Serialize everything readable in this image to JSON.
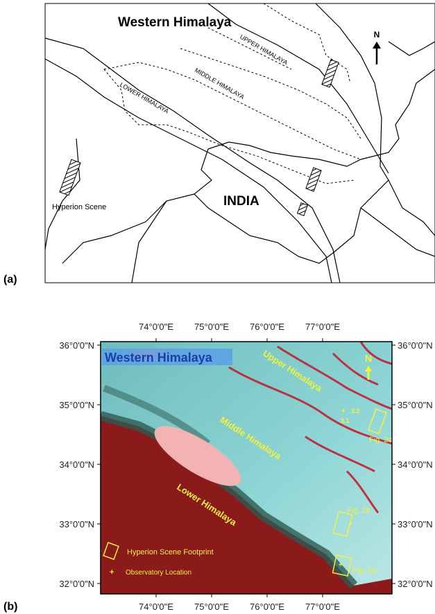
{
  "panel_a": {
    "label": "(a)",
    "title": "Western Himalaya",
    "north": "N",
    "zones": [
      "UPPER HIMALAYA",
      "MIDDLE HIMALAYA",
      "LOWER HIMALAYA"
    ],
    "country": "INDIA",
    "legend": "Hyperion Scene"
  },
  "panel_b": {
    "label": "(b)",
    "title": "Western Himalaya",
    "north": "N",
    "zones": [
      "Upper Himalaya",
      "Middle Himalaya",
      "Lower Himalaya"
    ],
    "lon_labels": [
      "74°0'0\"E",
      "75°0'0\"E",
      "76°0'0\"E",
      "77°0'0\"E"
    ],
    "lat_labels": [
      "36°0'0\"N",
      "35°0'0\"N",
      "34°0'0\"N",
      "33°0'0\"N",
      "32°0'0\"N"
    ],
    "sites": [
      "3.2",
      "3.1"
    ],
    "figures": [
      "Fig. 2c",
      "Fig. 2b",
      "Fig. 2a"
    ],
    "legend": [
      "Hyperion Scene Footprint",
      "+",
      "Observatory Location"
    ]
  }
}
